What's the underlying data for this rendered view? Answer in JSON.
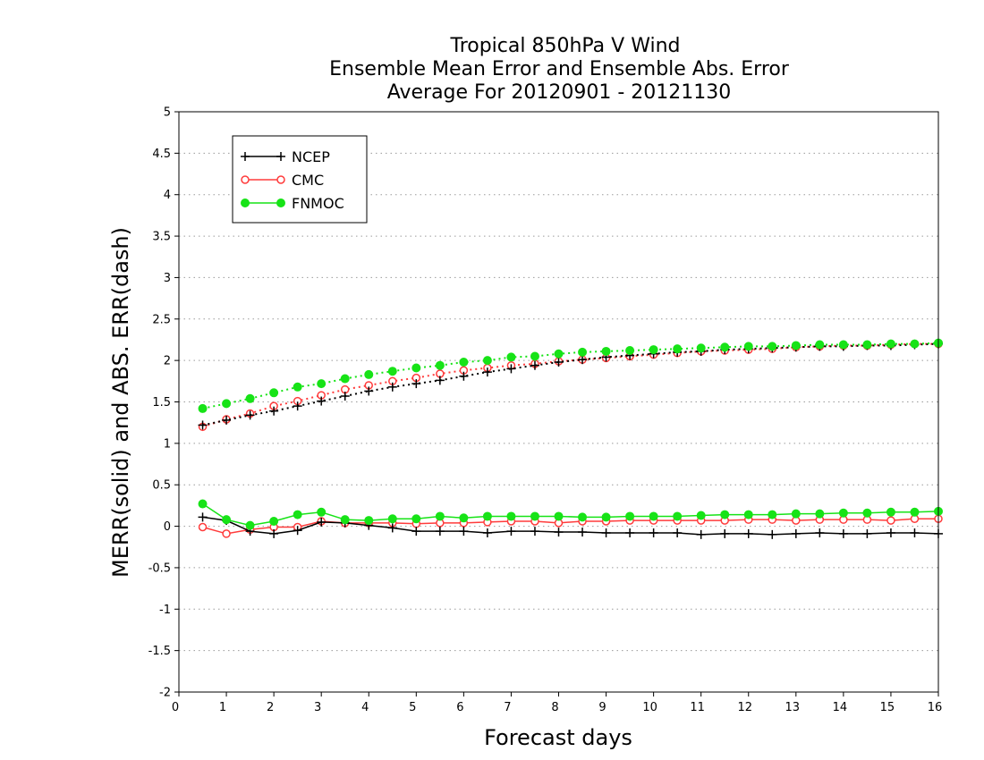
{
  "chart_data": {
    "type": "line",
    "title_lines": [
      "Tropical 850hPa V Wind",
      "Ensemble Mean Error and Ensemble Abs. Error",
      "Average For 20120901 - 20121130"
    ],
    "xlabel": "Forecast days",
    "ylabel": "MERR(solid) and ABS. ERR(dash)",
    "xlim": [
      0,
      16
    ],
    "ylim": [
      -2,
      5
    ],
    "x_ticks": [
      0,
      1,
      2,
      3,
      4,
      5,
      6,
      7,
      8,
      9,
      10,
      11,
      12,
      13,
      14,
      15,
      16
    ],
    "y_ticks": [
      -2,
      -1.5,
      -1,
      -0.5,
      0,
      0.5,
      1,
      1.5,
      2,
      2.5,
      3,
      3.5,
      4,
      4.5,
      5
    ],
    "y_tick_labels": [
      "-2",
      "-1.5",
      "-1",
      "-0.5",
      "0",
      "0.5",
      "1",
      "1.5",
      "2",
      "2.5",
      "3",
      "3.5",
      "4",
      "4.5",
      "5"
    ],
    "grid": "horizontal dotted",
    "legend_position": "top-left",
    "x": [
      0.5,
      1,
      1.5,
      2,
      2.5,
      3,
      3.5,
      4,
      4.5,
      5,
      5.5,
      6,
      6.5,
      7,
      7.5,
      8,
      8.5,
      9,
      9.5,
      10,
      10.5,
      11,
      11.5,
      12,
      12.5,
      13,
      13.5,
      14,
      14.5,
      15,
      15.5,
      16
    ],
    "series": [
      {
        "name": "NCEP",
        "color": "#000000",
        "marker": "plus",
        "merr": [
          0.11,
          0.07,
          -0.06,
          -0.09,
          -0.05,
          0.05,
          0.04,
          0.01,
          -0.02,
          -0.06,
          -0.06,
          -0.06,
          -0.08,
          -0.06,
          -0.06,
          -0.07,
          -0.07,
          -0.08,
          -0.08,
          -0.08,
          -0.08,
          -0.1,
          -0.09,
          -0.09,
          -0.1,
          -0.09,
          -0.08,
          -0.09,
          -0.09,
          -0.08,
          -0.08,
          -0.09
        ],
        "abs_err": [
          1.22,
          1.28,
          1.34,
          1.39,
          1.45,
          1.51,
          1.57,
          1.63,
          1.68,
          1.72,
          1.76,
          1.81,
          1.86,
          1.9,
          1.94,
          1.98,
          2.01,
          2.04,
          2.06,
          2.08,
          2.1,
          2.11,
          2.13,
          2.14,
          2.15,
          2.16,
          2.17,
          2.17,
          2.18,
          2.18,
          2.19,
          2.2
        ]
      },
      {
        "name": "CMC",
        "color": "#ff3b3b",
        "marker": "open-circle",
        "merr": [
          -0.01,
          -0.09,
          -0.04,
          -0.01,
          -0.01,
          0.06,
          0.04,
          0.04,
          0.04,
          0.03,
          0.04,
          0.04,
          0.05,
          0.06,
          0.06,
          0.04,
          0.06,
          0.06,
          0.07,
          0.07,
          0.07,
          0.07,
          0.07,
          0.08,
          0.08,
          0.07,
          0.08,
          0.08,
          0.08,
          0.07,
          0.09,
          0.09
        ],
        "abs_err": [
          1.2,
          1.29,
          1.36,
          1.45,
          1.51,
          1.58,
          1.65,
          1.7,
          1.75,
          1.79,
          1.84,
          1.88,
          1.91,
          1.94,
          1.96,
          1.99,
          2.01,
          2.03,
          2.05,
          2.07,
          2.09,
          2.11,
          2.12,
          2.13,
          2.14,
          2.16,
          2.17,
          2.18,
          2.18,
          2.19,
          2.2,
          2.2
        ]
      },
      {
        "name": "FNMOC",
        "color": "#17e317",
        "marker": "filled-circle",
        "merr": [
          0.27,
          0.08,
          0.01,
          0.06,
          0.14,
          0.17,
          0.08,
          0.07,
          0.09,
          0.09,
          0.12,
          0.1,
          0.12,
          0.12,
          0.12,
          0.12,
          0.11,
          0.11,
          0.12,
          0.12,
          0.12,
          0.13,
          0.14,
          0.14,
          0.14,
          0.15,
          0.15,
          0.16,
          0.16,
          0.17,
          0.17,
          0.18
        ],
        "abs_err": [
          1.42,
          1.48,
          1.54,
          1.61,
          1.68,
          1.72,
          1.78,
          1.83,
          1.87,
          1.91,
          1.94,
          1.98,
          2.0,
          2.04,
          2.05,
          2.08,
          2.1,
          2.11,
          2.12,
          2.13,
          2.14,
          2.15,
          2.16,
          2.17,
          2.17,
          2.18,
          2.19,
          2.19,
          2.19,
          2.2,
          2.2,
          2.21
        ]
      }
    ]
  }
}
